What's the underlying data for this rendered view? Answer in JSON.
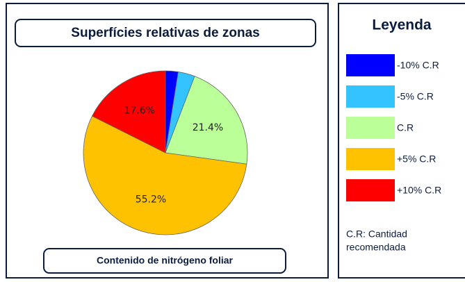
{
  "chart_data": {
    "type": "pie",
    "title": "Superfícies relativas de zonas",
    "caption": "Contenido de nitrógeno foliar",
    "legend_title": "Leyenda",
    "categories": [
      "-10% C.R",
      "-5% C.R",
      "C.R",
      "+5% C.R",
      "+10% C.R"
    ],
    "values": [
      2.5,
      3.3,
      21.4,
      55.2,
      17.6
    ],
    "value_labels": [
      null,
      null,
      "21.4%",
      "55.2%",
      "17.6%"
    ],
    "colors": [
      "#0000ff",
      "#33c3ff",
      "#bbff99",
      "#ffc200",
      "#ff0000"
    ],
    "note": [
      "C.R: Cantidad",
      "recomendada"
    ]
  }
}
